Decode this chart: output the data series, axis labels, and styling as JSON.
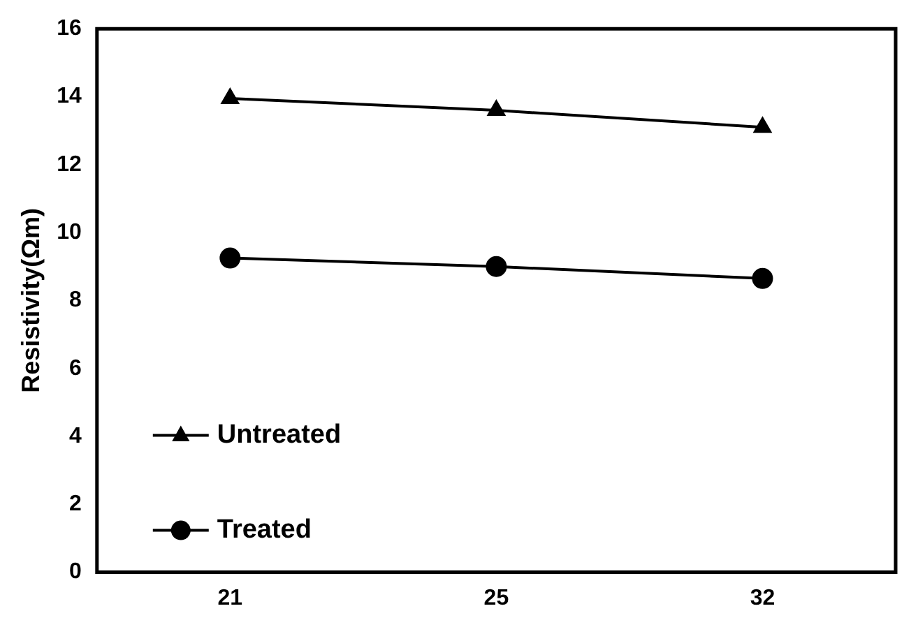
{
  "chart_data": {
    "type": "line",
    "ylabel": "Resistivity(Ωm)",
    "categories": [
      "21",
      "25",
      "32"
    ],
    "series": [
      {
        "name": "Untreated",
        "color": "#000000",
        "marker": "triangle",
        "values": [
          13.95,
          13.6,
          13.1
        ]
      },
      {
        "name": "Treated",
        "color": "#000000",
        "marker": "circle",
        "values": [
          9.25,
          9.0,
          8.65
        ]
      }
    ],
    "ylim": [
      0,
      16
    ],
    "yticks": [
      0,
      2,
      4,
      6,
      8,
      10,
      12,
      14,
      16
    ],
    "grid": false,
    "legend": "bottom left",
    "line_style": "solid"
  }
}
